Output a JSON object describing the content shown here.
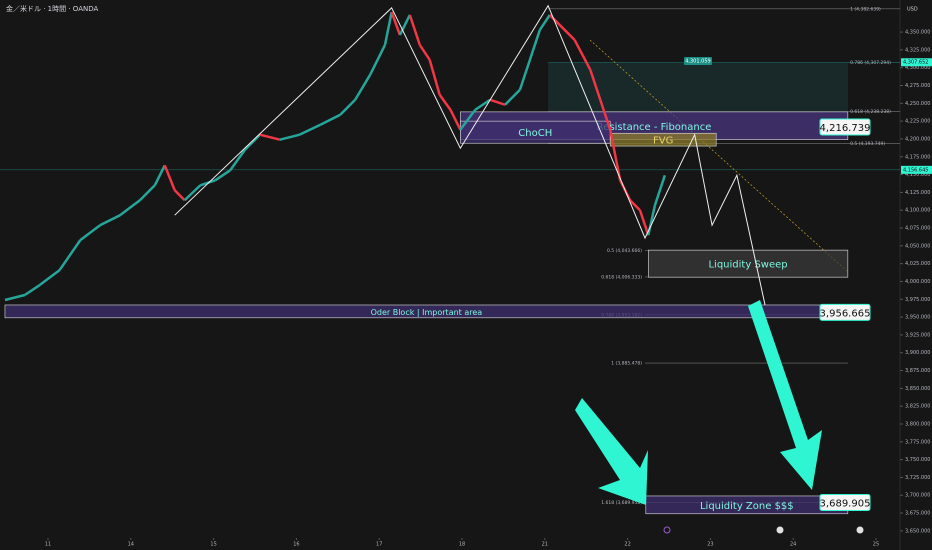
{
  "chart_data": {
    "type": "line",
    "title": "金／米ドル · 1時間 · OANDA",
    "currency": "USD",
    "xlim": [
      -0.58,
      10.29
    ],
    "ylim": [
      3640,
      4395
    ],
    "xticks": [
      {
        "value": 0,
        "label": "11"
      },
      {
        "value": 1,
        "label": "14"
      },
      {
        "value": 2,
        "label": "15"
      },
      {
        "value": 3,
        "label": "16"
      },
      {
        "value": 4,
        "label": "17"
      },
      {
        "value": 5,
        "label": "18"
      },
      {
        "value": 6,
        "label": "21"
      },
      {
        "value": 7,
        "label": "22"
      },
      {
        "value": 8,
        "label": "23"
      },
      {
        "value": 9,
        "label": "24"
      },
      {
        "value": 10,
        "label": "25"
      }
    ],
    "yticks": [
      {
        "value": 3650,
        "label": "3,650.000"
      },
      {
        "value": 3675,
        "label": "3,675.000"
      },
      {
        "value": 3700,
        "label": "3,700.000"
      },
      {
        "value": 3725,
        "label": "3,725.000"
      },
      {
        "value": 3750,
        "label": "3,750.000"
      },
      {
        "value": 3775,
        "label": "3,775.000"
      },
      {
        "value": 3800,
        "label": "3,800.000"
      },
      {
        "value": 3825,
        "label": "3,825.000"
      },
      {
        "value": 3850,
        "label": "3,850.000"
      },
      {
        "value": 3875,
        "label": "3,875.000"
      },
      {
        "value": 3900,
        "label": "3,900.000"
      },
      {
        "value": 3925,
        "label": "3,925.000"
      },
      {
        "value": 3950,
        "label": "3,950.000"
      },
      {
        "value": 3975,
        "label": "3,975.000"
      },
      {
        "value": 4000,
        "label": "4,000.000"
      },
      {
        "value": 4025,
        "label": "4,025.000"
      },
      {
        "value": 4050,
        "label": "4,050.000"
      },
      {
        "value": 4075,
        "label": "4,075.000"
      },
      {
        "value": 4100,
        "label": "4,100.000"
      },
      {
        "value": 4125,
        "label": "4,125.000"
      },
      {
        "value": 4150,
        "label": "4,150.000"
      },
      {
        "value": 4175,
        "label": "4,175.000"
      },
      {
        "value": 4200,
        "label": "4,200.000"
      },
      {
        "value": 4225,
        "label": "4,225.000"
      },
      {
        "value": 4250,
        "label": "4,250.000"
      },
      {
        "value": 4275,
        "label": "4,275.000"
      },
      {
        "value": 4300,
        "label": "4,300.000"
      },
      {
        "value": 4325,
        "label": "4,325.000"
      },
      {
        "value": 4350,
        "label": "4,350.000"
      }
    ],
    "up_color": "#26a69a",
    "down_color": "#f23645",
    "x": [
      -0.52,
      -0.28,
      -0.1,
      0.14,
      0.39,
      0.63,
      0.87,
      1.11,
      1.29,
      1.41,
      1.53,
      1.65,
      1.84,
      2.02,
      2.2,
      2.38,
      2.56,
      2.8,
      3.04,
      3.29,
      3.53,
      3.71,
      3.89,
      4.07,
      4.15,
      4.25,
      4.37,
      4.49,
      4.61,
      4.73,
      4.86,
      4.98,
      5.16,
      5.34,
      5.52,
      5.7,
      5.82,
      5.94,
      6.06,
      6.18,
      6.36,
      6.55,
      6.67,
      6.79,
      6.91,
      7.03,
      7.15,
      7.25,
      7.33,
      7.45
    ],
    "values": [
      3974,
      3981,
      3995,
      4016,
      4058,
      4079,
      4093,
      4114,
      4135,
      4163,
      4128,
      4114,
      4135,
      4142,
      4156,
      4185,
      4206,
      4199,
      4206,
      4220,
      4234,
      4255,
      4290,
      4332,
      4378,
      4346,
      4374,
      4332,
      4311,
      4262,
      4241,
      4213,
      4241,
      4255,
      4248,
      4269,
      4311,
      4353,
      4374,
      4360,
      4339,
      4297,
      4255,
      4213,
      4142,
      4114,
      4100,
      4065,
      4107,
      4149
    ],
    "zigzag": {
      "x": [
        1.53,
        4.15,
        4.98,
        6.04,
        7.21,
        7.81,
        8.02,
        8.32,
        8.66
      ],
      "y": [
        4093,
        4384,
        4187,
        4387,
        4061,
        4206,
        4079,
        4149,
        3967
      ]
    },
    "boxes": [
      {
        "text": "Resistance - Fibonance",
        "x": [
          4.98,
          9.66
        ],
        "y": [
          4199,
          4238
        ],
        "color": "#4a3580"
      },
      {
        "text": "ChoCH",
        "x": [
          4.98,
          6.79
        ],
        "y": [
          4194,
          4225
        ],
        "color": "#3d2f6e"
      },
      {
        "text": "FVG",
        "x": [
          6.79,
          8.07
        ],
        "y": [
          4190,
          4208
        ],
        "color": "#8a7a2a"
      },
      {
        "text": "Liquidity Sweep",
        "x": [
          7.25,
          9.66
        ],
        "y": [
          4006,
          4044
        ],
        "color": "#3a3a3a"
      },
      {
        "text": "Oder Block | Important area",
        "x": [
          -0.52,
          9.66
        ],
        "y": [
          3949,
          3967
        ],
        "color": "#3d2f6e"
      },
      {
        "text": "Liquidity Zone $$$",
        "x": [
          7.22,
          9.66
        ],
        "y": [
          3674,
          3699
        ],
        "color": "#3d2f6e"
      }
    ],
    "fib_upper": {
      "x": [
        6.04,
        10.29
      ],
      "levels": [
        {
          "value": 4382.639,
          "label": "1 (4,382.639)"
        },
        {
          "value": 4307.294,
          "label": "0.786 (4,307.294)"
        },
        {
          "value": 4238.238,
          "label": "0.618 (4,238.238)"
        },
        {
          "value": 4193.749,
          "label": "0.5 (4,193.749)"
        }
      ]
    },
    "fib_lower": {
      "x": [
        7.21,
        9.66
      ],
      "levels": [
        {
          "value": 4043.666,
          "label": "0.5 (4,043.666)"
        },
        {
          "value": 4006.333,
          "label": "0.618 (4,006.333)"
        },
        {
          "value": 3953.182,
          "label": "0.786 (3,953.182)"
        },
        {
          "value": 3885.478,
          "label": "1 (3,885.478)"
        },
        {
          "value": 3689.958,
          "label": "1.618 (3,689.958)"
        }
      ]
    },
    "big_tags": [
      {
        "value": 4216.739,
        "label": "4,216.739"
      },
      {
        "value": 3956.665,
        "label": "3,956.665"
      },
      {
        "value": 3689.905,
        "label": "3,689.905"
      }
    ],
    "axis_tags": [
      {
        "value": 4307.652,
        "label": "4,307.652"
      },
      {
        "value": 4156.645,
        "label": "4,156.645"
      }
    ],
    "point_tag": {
      "x": 7.85,
      "value": 4301.059,
      "label": "4,301.059"
    }
  }
}
